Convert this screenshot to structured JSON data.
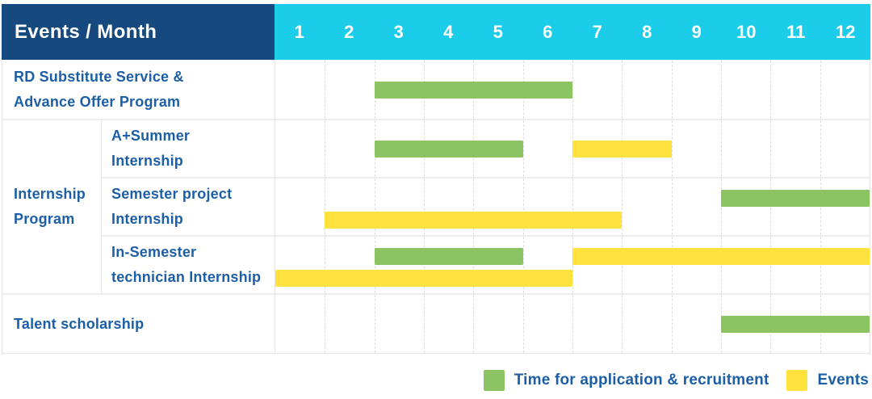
{
  "header": {
    "title": "Events / Month",
    "months": [
      "1",
      "2",
      "3",
      "4",
      "5",
      "6",
      "7",
      "8",
      "9",
      "10",
      "11",
      "12"
    ]
  },
  "group": {
    "label": "Internship Program",
    "lines": [
      "Internship",
      "Program"
    ]
  },
  "legend": {
    "items": [
      {
        "label": "Time for application & recruitment",
        "type": "application",
        "color": "#8cc363"
      },
      {
        "label": "Events",
        "type": "event",
        "color": "#ffe23e"
      }
    ]
  },
  "colors": {
    "header_bg": "#164a7e",
    "month_header_bg": "#1ccdea",
    "label_text": "#1c5fa6",
    "application_green": "#8cc363",
    "event_yellow": "#ffe23e",
    "grid_line": "#dcdcdc",
    "row_border": "#ededed"
  },
  "chart_data": {
    "type": "bar",
    "subtype": "gantt-timeline",
    "title": "Events / Month",
    "xlabel": "Month",
    "x_ticks": [
      "1",
      "2",
      "3",
      "4",
      "5",
      "6",
      "7",
      "8",
      "9",
      "10",
      "11",
      "12"
    ],
    "x_range": [
      1,
      12
    ],
    "grid": true,
    "legend_position": "bottom-right",
    "bar_meaning": {
      "application": "Time for application & recruitment",
      "event": "Events"
    },
    "rows": [
      {
        "group": "",
        "label": "RD Substitute Service & Advance Offer Program",
        "label_lines": [
          "RD Substitute Service &",
          "Advance Offer Program"
        ],
        "bars": [
          {
            "type": "application",
            "start_month": 3,
            "end_month": 6,
            "lane": "center"
          }
        ]
      },
      {
        "group": "Internship Program",
        "label": "A+Summer Internship",
        "label_lines": [
          "A+Summer",
          "Internship"
        ],
        "bars": [
          {
            "type": "application",
            "start_month": 3,
            "end_month": 5,
            "lane": "center"
          },
          {
            "type": "event",
            "start_month": 7,
            "end_month": 8,
            "lane": "center"
          }
        ]
      },
      {
        "group": "Internship Program",
        "label": "Semester project Internship",
        "label_lines": [
          "Semester project",
          "Internship"
        ],
        "bars": [
          {
            "type": "application",
            "start_month": 10,
            "end_month": 12,
            "lane": "top"
          },
          {
            "type": "event",
            "start_month": 2,
            "end_month": 7,
            "lane": "bottom"
          }
        ]
      },
      {
        "group": "Internship Program",
        "label": "In-Semester technician Internship",
        "label_lines": [
          "In-Semester",
          "technician Internship"
        ],
        "bars": [
          {
            "type": "application",
            "start_month": 3,
            "end_month": 5,
            "lane": "top"
          },
          {
            "type": "event",
            "start_month": 7,
            "end_month": 12,
            "lane": "top"
          },
          {
            "type": "event",
            "start_month": 1,
            "end_month": 6,
            "lane": "bottom"
          }
        ]
      },
      {
        "group": "",
        "label": "Talent scholarship",
        "label_lines": [
          "Talent scholarship"
        ],
        "bars": [
          {
            "type": "application",
            "start_month": 10,
            "end_month": 12,
            "lane": "center"
          }
        ]
      }
    ]
  }
}
